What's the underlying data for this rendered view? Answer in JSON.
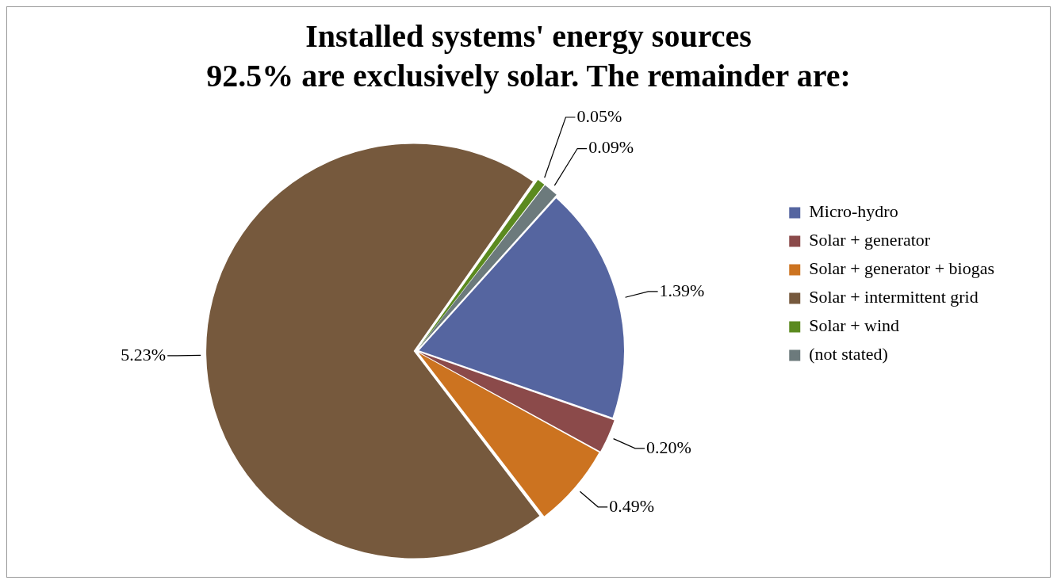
{
  "chart_data": {
    "type": "pie",
    "title": "Installed systems' energy sources",
    "subtitle": "92.5% are exclusively solar. The remainder are:",
    "categories": [
      "Micro-hydro",
      "Solar + generator",
      "Solar + generator + biogas",
      "Solar + intermittent grid",
      "Solar + wind",
      "(not stated)"
    ],
    "values": [
      1.39,
      0.2,
      0.49,
      5.23,
      0.05,
      0.09
    ],
    "value_labels": [
      "1.39%",
      "0.20%",
      "0.49%",
      "5.23%",
      "0.05%",
      "0.09%"
    ],
    "colors": [
      "#5565a0",
      "#8b4a4a",
      "#cc7320",
      "#76593d",
      "#5b8a1f",
      "#6c7a7c"
    ],
    "legend": "right"
  }
}
